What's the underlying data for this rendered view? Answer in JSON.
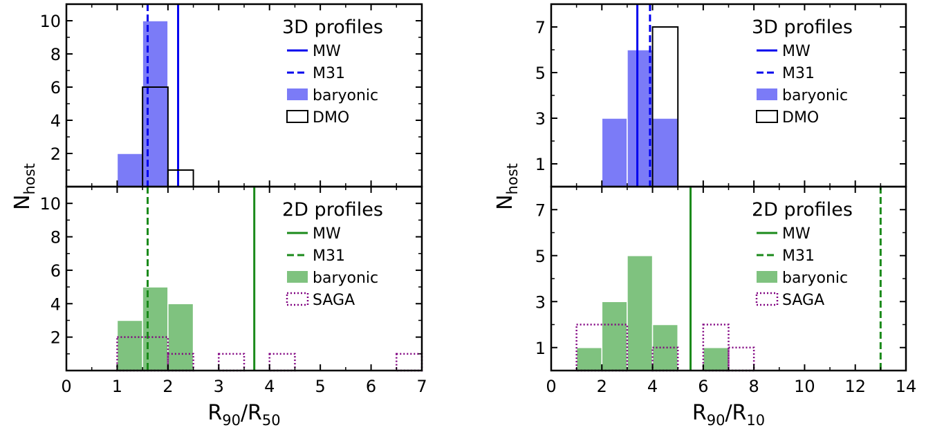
{
  "chart_data": [
    {
      "panel": "left-top",
      "type": "bar",
      "xlim": [
        0,
        7
      ],
      "ylim": [
        0,
        11
      ],
      "yticks": [
        2,
        4,
        6,
        8,
        10
      ],
      "legend_title": "3D profiles",
      "legend": [
        {
          "key": "mw",
          "label": "MW",
          "style": "solid-line",
          "color": "#0000ee"
        },
        {
          "key": "m31",
          "label": "M31",
          "style": "dashed-line",
          "color": "#0000ee"
        },
        {
          "key": "baryonic",
          "label": "baryonic",
          "style": "filled",
          "color": "#7b7bf7"
        },
        {
          "key": "dmo",
          "label": "DMO",
          "style": "outline",
          "color": "#000000"
        }
      ],
      "vlines": [
        {
          "key": "mw",
          "x": 2.2,
          "style": "solid",
          "color": "#0000ee"
        },
        {
          "key": "m31",
          "x": 1.6,
          "style": "dashed",
          "color": "#0000ee"
        }
      ],
      "series": [
        {
          "key": "baryonic",
          "style": "filled",
          "color": "#7b7bf7",
          "bins": [
            [
              1.0,
              1.5,
              2
            ],
            [
              1.5,
              2.0,
              10
            ]
          ]
        },
        {
          "key": "dmo",
          "style": "outline",
          "color": "#000000",
          "bins": [
            [
              1.5,
              2.0,
              6
            ],
            [
              2.0,
              2.5,
              1
            ]
          ]
        }
      ]
    },
    {
      "panel": "left-bottom",
      "type": "bar",
      "xlim": [
        0,
        7
      ],
      "ylim": [
        0,
        11
      ],
      "yticks": [
        2,
        4,
        6,
        8,
        10
      ],
      "xticks": [
        0,
        1,
        2,
        3,
        4,
        5,
        6,
        7
      ],
      "xlabel": {
        "main": "R",
        "sub1": "90",
        "mid": "/R",
        "sub2": "50"
      },
      "legend_title": "2D profiles",
      "legend": [
        {
          "key": "mw",
          "label": "MW",
          "style": "solid-line",
          "color": "#1a8a1a"
        },
        {
          "key": "m31",
          "label": "M31",
          "style": "dashed-line",
          "color": "#1a8a1a"
        },
        {
          "key": "baryonic",
          "label": "baryonic",
          "style": "filled",
          "color": "#7fc27f"
        },
        {
          "key": "saga",
          "label": "SAGA",
          "style": "dotted-outline",
          "color": "#800080"
        }
      ],
      "vlines": [
        {
          "key": "mw",
          "x": 3.7,
          "style": "solid",
          "color": "#1a8a1a"
        },
        {
          "key": "m31",
          "x": 1.6,
          "style": "dashed",
          "color": "#1a8a1a"
        }
      ],
      "series": [
        {
          "key": "baryonic",
          "style": "filled",
          "color": "#7fc27f",
          "bins": [
            [
              1.0,
              1.5,
              3
            ],
            [
              1.5,
              2.0,
              5
            ],
            [
              2.0,
              2.5,
              4
            ]
          ]
        },
        {
          "key": "saga",
          "style": "dotted",
          "color": "#800080",
          "bins": [
            [
              1.0,
              2.0,
              2
            ],
            [
              2.0,
              2.5,
              1
            ],
            [
              3.0,
              3.5,
              1
            ],
            [
              4.0,
              4.5,
              1
            ],
            [
              6.5,
              7.0,
              1
            ]
          ]
        }
      ]
    },
    {
      "panel": "right-top",
      "type": "bar",
      "xlim": [
        0,
        14
      ],
      "ylim": [
        0,
        8
      ],
      "yticks": [
        1,
        3,
        5,
        7
      ],
      "legend_title": "3D profiles",
      "legend": [
        {
          "key": "mw",
          "label": "MW",
          "style": "solid-line",
          "color": "#0000ee"
        },
        {
          "key": "m31",
          "label": "M31",
          "style": "dashed-line",
          "color": "#0000ee"
        },
        {
          "key": "baryonic",
          "label": "baryonic",
          "style": "filled",
          "color": "#7b7bf7"
        },
        {
          "key": "dmo",
          "label": "DMO",
          "style": "outline",
          "color": "#000000"
        }
      ],
      "vlines": [
        {
          "key": "mw",
          "x": 3.4,
          "style": "solid",
          "color": "#0000ee"
        },
        {
          "key": "m31",
          "x": 3.9,
          "style": "dashed",
          "color": "#0000ee"
        }
      ],
      "series": [
        {
          "key": "baryonic",
          "style": "filled",
          "color": "#7b7bf7",
          "bins": [
            [
              2,
              3,
              3
            ],
            [
              3,
              4,
              6
            ],
            [
              4,
              5,
              3
            ]
          ]
        },
        {
          "key": "dmo",
          "style": "outline",
          "color": "#000000",
          "bins": [
            [
              4,
              5,
              7
            ]
          ]
        }
      ]
    },
    {
      "panel": "right-bottom",
      "type": "bar",
      "xlim": [
        0,
        14
      ],
      "ylim": [
        0,
        8
      ],
      "yticks": [
        1,
        3,
        5,
        7
      ],
      "xticks": [
        0,
        2,
        4,
        6,
        8,
        10,
        12,
        14
      ],
      "xlabel": {
        "main": "R",
        "sub1": "90",
        "mid": "/R",
        "sub2": "10"
      },
      "legend_title": "2D profiles",
      "legend": [
        {
          "key": "mw",
          "label": "MW",
          "style": "solid-line",
          "color": "#1a8a1a"
        },
        {
          "key": "m31",
          "label": "M31",
          "style": "dashed-line",
          "color": "#1a8a1a"
        },
        {
          "key": "baryonic",
          "label": "baryonic",
          "style": "filled",
          "color": "#7fc27f"
        },
        {
          "key": "saga",
          "label": "SAGA",
          "style": "dotted-outline",
          "color": "#800080"
        }
      ],
      "vlines": [
        {
          "key": "mw",
          "x": 5.5,
          "style": "solid",
          "color": "#1a8a1a"
        },
        {
          "key": "m31",
          "x": 13,
          "style": "dashed",
          "color": "#1a8a1a"
        }
      ],
      "series": [
        {
          "key": "baryonic",
          "style": "filled",
          "color": "#7fc27f",
          "bins": [
            [
              1,
              2,
              1
            ],
            [
              2,
              3,
              3
            ],
            [
              3,
              4,
              5
            ],
            [
              4,
              5,
              2
            ],
            [
              6,
              7,
              1
            ]
          ]
        },
        {
          "key": "saga",
          "style": "dotted",
          "color": "#800080",
          "bins": [
            [
              1,
              3,
              2
            ],
            [
              4,
              5,
              1
            ],
            [
              6,
              7,
              2
            ],
            [
              7,
              8,
              1
            ]
          ]
        }
      ]
    }
  ],
  "ylabels": {
    "left": {
      "main": "N",
      "sub": "host"
    },
    "right": {
      "main": "N",
      "sub": "host"
    }
  }
}
